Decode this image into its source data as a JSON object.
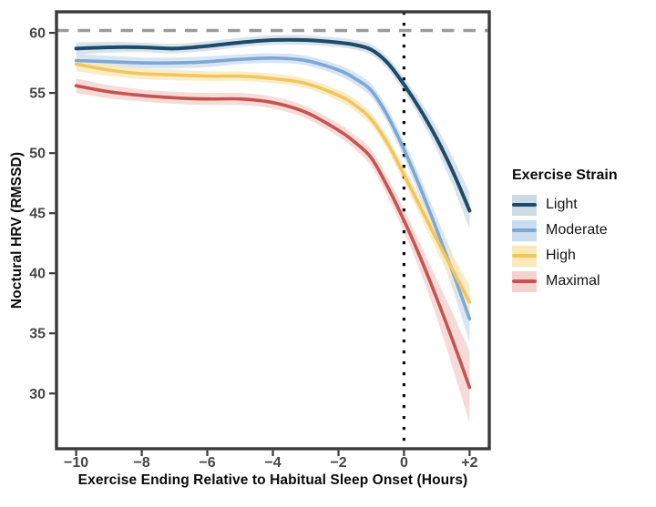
{
  "figure": {
    "background": "#ffffff"
  },
  "chart_data": {
    "type": "line",
    "title": "",
    "xlabel": "Exercise Ending Relative to Habitual Sleep Onset (Hours)",
    "ylabel": "Noctural HRV (RMSSD)",
    "xlim": [
      -10.6,
      2.6
    ],
    "ylim": [
      25.4,
      61.75
    ],
    "grid": "off",
    "x_ticks": {
      "values": [
        -10,
        -8,
        -6,
        -4,
        -2,
        0,
        2
      ],
      "labels": [
        "−10",
        "−8",
        "−6",
        "−4",
        "−2",
        "0",
        "+2"
      ]
    },
    "y_ticks": {
      "values": [
        60,
        55,
        50,
        45,
        40,
        35,
        30
      ],
      "labels": [
        "60",
        "55",
        "50",
        "45",
        "40",
        "35",
        "30"
      ]
    },
    "reference_lines": {
      "horizontal_dashed": {
        "y": 60.2,
        "color": "#9b9b9b",
        "style": "dashed"
      },
      "vertical_dotted": {
        "x": 0,
        "color": "#0d0d0d",
        "style": "dotted"
      }
    },
    "x": [
      -10,
      -9,
      -8,
      -7,
      -6,
      -5,
      -4,
      -3,
      -2,
      -1.5,
      -1,
      -0.5,
      0,
      0.5,
      1,
      1.5,
      2
    ],
    "series": [
      {
        "name": "Light",
        "color": "#1d4b69",
        "band_color": "#ccdae6",
        "band_opacity": 0.75,
        "values": [
          58.7,
          58.8,
          58.8,
          58.7,
          58.9,
          59.2,
          59.4,
          59.4,
          59.2,
          59.0,
          58.6,
          57.5,
          55.7,
          53.6,
          51.2,
          48.4,
          45.2
        ],
        "band_halfwidth": [
          0.5,
          0.45,
          0.4,
          0.4,
          0.4,
          0.4,
          0.4,
          0.4,
          0.4,
          0.4,
          0.45,
          0.5,
          0.6,
          0.75,
          0.95,
          1.2,
          1.5
        ]
      },
      {
        "name": "Moderate",
        "color": "#7da8d4",
        "band_color": "#c9dcf0",
        "band_opacity": 0.75,
        "values": [
          57.7,
          57.6,
          57.5,
          57.5,
          57.6,
          57.8,
          57.9,
          57.7,
          56.9,
          56.2,
          55.2,
          53.1,
          50.3,
          47.1,
          43.6,
          40.0,
          36.2
        ],
        "band_halfwidth": [
          0.55,
          0.5,
          0.45,
          0.45,
          0.45,
          0.4,
          0.4,
          0.4,
          0.45,
          0.5,
          0.55,
          0.6,
          0.7,
          0.85,
          1.05,
          1.45,
          1.95
        ]
      },
      {
        "name": "High",
        "color": "#f2c55f",
        "band_color": "#fbe9bb",
        "band_opacity": 0.8,
        "values": [
          57.4,
          56.9,
          56.6,
          56.5,
          56.4,
          56.4,
          56.2,
          55.8,
          54.8,
          54.0,
          52.8,
          50.8,
          48.2,
          45.5,
          42.8,
          40.2,
          37.6
        ],
        "band_halfwidth": [
          0.6,
          0.5,
          0.45,
          0.45,
          0.4,
          0.4,
          0.4,
          0.4,
          0.45,
          0.5,
          0.5,
          0.55,
          0.65,
          0.75,
          0.95,
          1.15,
          1.4
        ]
      },
      {
        "name": "Maximal",
        "color": "#c55450",
        "band_color": "#f5d2d0",
        "band_opacity": 0.8,
        "values": [
          55.6,
          55.1,
          54.8,
          54.6,
          54.5,
          54.5,
          54.2,
          53.4,
          51.9,
          50.9,
          49.6,
          47.2,
          44.4,
          41.3,
          37.9,
          34.3,
          30.5
        ],
        "band_halfwidth": [
          0.6,
          0.55,
          0.5,
          0.5,
          0.5,
          0.5,
          0.5,
          0.5,
          0.55,
          0.6,
          0.7,
          0.8,
          0.95,
          1.2,
          1.6,
          2.3,
          3.0
        ]
      }
    ],
    "legend": {
      "title": "Exercise Strain",
      "position": "right"
    }
  }
}
